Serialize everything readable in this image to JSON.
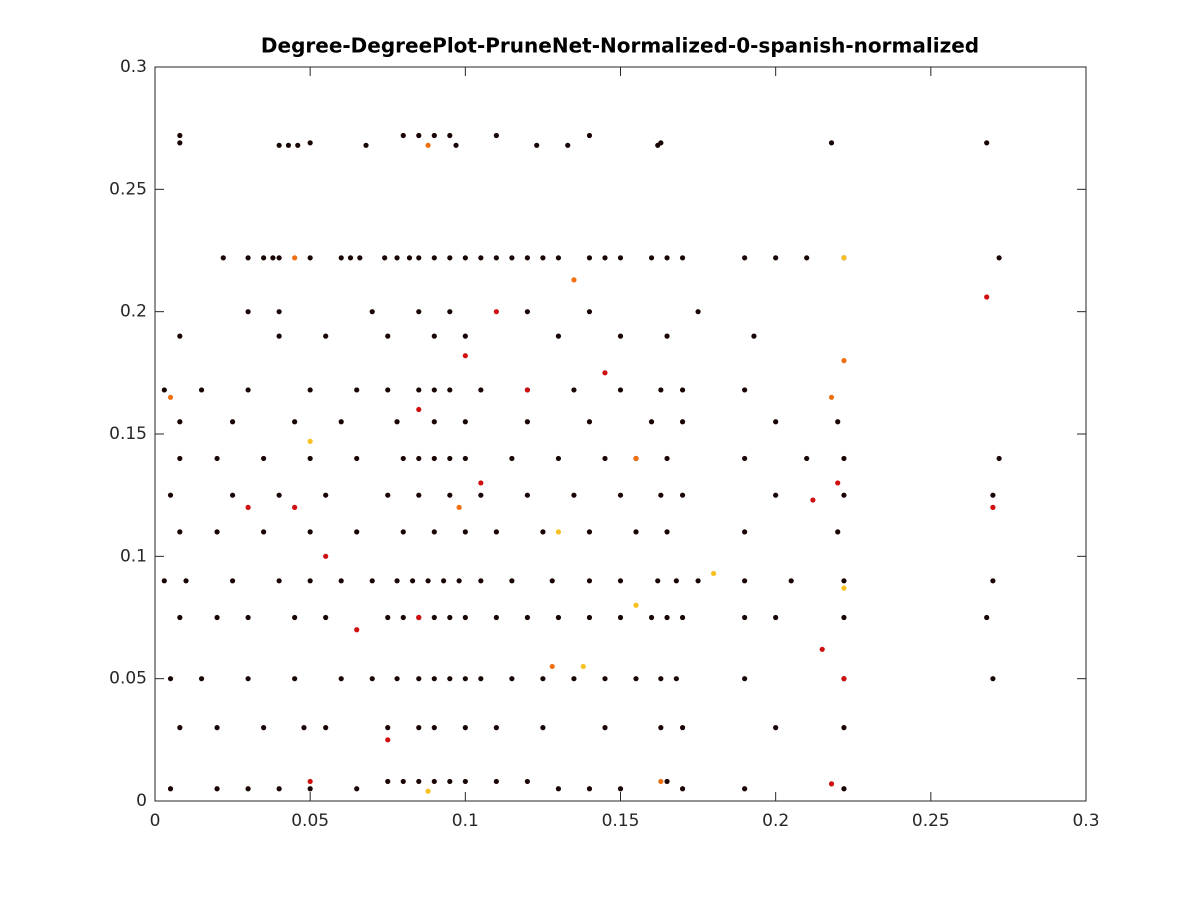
{
  "chart_data": {
    "type": "scatter",
    "title": "Degree-DegreePlot-PruneNet-Normalized-0-spanish-normalized",
    "xlim": [
      0,
      0.3
    ],
    "ylim": [
      0,
      0.3
    ],
    "xticks": [
      0,
      0.05,
      0.1,
      0.15,
      0.2,
      0.25,
      0.3
    ],
    "yticks": [
      0,
      0.05,
      0.1,
      0.15,
      0.2,
      0.25,
      0.3
    ],
    "series": [
      {
        "color": "#1a0505",
        "x": [
          0.005,
          0.02,
          0.03,
          0.04,
          0.05,
          0.065,
          0.075,
          0.08,
          0.085,
          0.09,
          0.095,
          0.1,
          0.11,
          0.12,
          0.13,
          0.14,
          0.15,
          0.165,
          0.17,
          0.19,
          0.222
        ],
        "values": [
          0.005,
          0.005,
          0.005,
          0.005,
          0.005,
          0.005,
          0.008,
          0.008,
          0.008,
          0.008,
          0.008,
          0.008,
          0.008,
          0.008,
          0.005,
          0.005,
          0.005,
          0.008,
          0.005,
          0.005,
          0.005
        ]
      },
      {
        "color": "#1a0505",
        "x": [
          0.008,
          0.02,
          0.035,
          0.048,
          0.055,
          0.075,
          0.085,
          0.09,
          0.1,
          0.11,
          0.125,
          0.145,
          0.163,
          0.17,
          0.2,
          0.222
        ],
        "values": [
          0.03,
          0.03,
          0.03,
          0.03,
          0.03,
          0.03,
          0.03,
          0.03,
          0.03,
          0.03,
          0.03,
          0.03,
          0.03,
          0.03,
          0.03,
          0.03
        ]
      },
      {
        "color": "#1a0505",
        "x": [
          0.005,
          0.015,
          0.03,
          0.045,
          0.06,
          0.07,
          0.078,
          0.085,
          0.09,
          0.095,
          0.1,
          0.105,
          0.115,
          0.125,
          0.135,
          0.145,
          0.155,
          0.163,
          0.168,
          0.19,
          0.222,
          0.27
        ],
        "values": [
          0.05,
          0.05,
          0.05,
          0.05,
          0.05,
          0.05,
          0.05,
          0.05,
          0.05,
          0.05,
          0.05,
          0.05,
          0.05,
          0.05,
          0.05,
          0.05,
          0.05,
          0.05,
          0.05,
          0.05,
          0.05,
          0.05
        ]
      },
      {
        "color": "#1a0505",
        "x": [
          0.008,
          0.02,
          0.03,
          0.045,
          0.055,
          0.075,
          0.08,
          0.085,
          0.09,
          0.095,
          0.1,
          0.11,
          0.12,
          0.13,
          0.14,
          0.15,
          0.16,
          0.165,
          0.17,
          0.19,
          0.2,
          0.222,
          0.268
        ],
        "values": [
          0.075,
          0.075,
          0.075,
          0.075,
          0.075,
          0.075,
          0.075,
          0.075,
          0.075,
          0.075,
          0.075,
          0.075,
          0.075,
          0.075,
          0.075,
          0.075,
          0.075,
          0.075,
          0.075,
          0.075,
          0.075,
          0.075,
          0.075
        ]
      },
      {
        "color": "#1a0505",
        "x": [
          0.003,
          0.01,
          0.025,
          0.04,
          0.05,
          0.06,
          0.07,
          0.078,
          0.083,
          0.088,
          0.093,
          0.098,
          0.105,
          0.115,
          0.128,
          0.14,
          0.15,
          0.162,
          0.168,
          0.175,
          0.19,
          0.205,
          0.222,
          0.27
        ],
        "values": [
          0.09,
          0.09,
          0.09,
          0.09,
          0.09,
          0.09,
          0.09,
          0.09,
          0.09,
          0.09,
          0.09,
          0.09,
          0.09,
          0.09,
          0.09,
          0.09,
          0.09,
          0.09,
          0.09,
          0.09,
          0.09,
          0.09,
          0.09,
          0.09
        ]
      },
      {
        "color": "#1a0505",
        "x": [
          0.008,
          0.02,
          0.035,
          0.05,
          0.065,
          0.08,
          0.09,
          0.1,
          0.11,
          0.125,
          0.14,
          0.155,
          0.165,
          0.19,
          0.22
        ],
        "values": [
          0.11,
          0.11,
          0.11,
          0.11,
          0.11,
          0.11,
          0.11,
          0.11,
          0.11,
          0.11,
          0.11,
          0.11,
          0.11,
          0.11,
          0.11
        ]
      },
      {
        "color": "#1a0505",
        "x": [
          0.005,
          0.025,
          0.04,
          0.055,
          0.075,
          0.085,
          0.095,
          0.105,
          0.12,
          0.135,
          0.15,
          0.163,
          0.17,
          0.2,
          0.222,
          0.27
        ],
        "values": [
          0.125,
          0.125,
          0.125,
          0.125,
          0.125,
          0.125,
          0.125,
          0.125,
          0.125,
          0.125,
          0.125,
          0.125,
          0.125,
          0.125,
          0.125,
          0.125
        ]
      },
      {
        "color": "#1a0505",
        "x": [
          0.008,
          0.02,
          0.035,
          0.05,
          0.065,
          0.08,
          0.085,
          0.09,
          0.095,
          0.1,
          0.115,
          0.13,
          0.145,
          0.155,
          0.165,
          0.19,
          0.21,
          0.222,
          0.272
        ],
        "values": [
          0.14,
          0.14,
          0.14,
          0.14,
          0.14,
          0.14,
          0.14,
          0.14,
          0.14,
          0.14,
          0.14,
          0.14,
          0.14,
          0.14,
          0.14,
          0.14,
          0.14,
          0.14,
          0.14
        ]
      },
      {
        "color": "#1a0505",
        "x": [
          0.008,
          0.025,
          0.045,
          0.06,
          0.078,
          0.09,
          0.1,
          0.12,
          0.14,
          0.16,
          0.17,
          0.2,
          0.22
        ],
        "values": [
          0.155,
          0.155,
          0.155,
          0.155,
          0.155,
          0.155,
          0.155,
          0.155,
          0.155,
          0.155,
          0.155,
          0.155,
          0.155
        ]
      },
      {
        "color": "#1a0505",
        "x": [
          0.003,
          0.015,
          0.03,
          0.05,
          0.065,
          0.075,
          0.085,
          0.09,
          0.095,
          0.105,
          0.12,
          0.135,
          0.15,
          0.163,
          0.17,
          0.19
        ],
        "values": [
          0.168,
          0.168,
          0.168,
          0.168,
          0.168,
          0.168,
          0.168,
          0.168,
          0.168,
          0.168,
          0.168,
          0.168,
          0.168,
          0.168,
          0.168,
          0.168
        ]
      },
      {
        "color": "#1a0505",
        "x": [
          0.008,
          0.04,
          0.055,
          0.075,
          0.09,
          0.1,
          0.13,
          0.15,
          0.165,
          0.193
        ],
        "values": [
          0.19,
          0.19,
          0.19,
          0.19,
          0.19,
          0.19,
          0.19,
          0.19,
          0.19,
          0.19
        ]
      },
      {
        "color": "#1a0505",
        "x": [
          0.03,
          0.04,
          0.07,
          0.085,
          0.095,
          0.12,
          0.14,
          0.175
        ],
        "values": [
          0.2,
          0.2,
          0.2,
          0.2,
          0.2,
          0.2,
          0.2,
          0.2
        ]
      },
      {
        "color": "#1a0505",
        "x": [
          0.022,
          0.03,
          0.035,
          0.038,
          0.04,
          0.05,
          0.06,
          0.063,
          0.066,
          0.074,
          0.078,
          0.082,
          0.085,
          0.09,
          0.095,
          0.1,
          0.105,
          0.11,
          0.115,
          0.12,
          0.125,
          0.13,
          0.14,
          0.145,
          0.15,
          0.16,
          0.165,
          0.17,
          0.19,
          0.2,
          0.21,
          0.222,
          0.272
        ],
        "values": [
          0.222,
          0.222,
          0.222,
          0.222,
          0.222,
          0.222,
          0.222,
          0.222,
          0.222,
          0.222,
          0.222,
          0.222,
          0.222,
          0.222,
          0.222,
          0.222,
          0.222,
          0.222,
          0.222,
          0.222,
          0.222,
          0.222,
          0.222,
          0.222,
          0.222,
          0.222,
          0.222,
          0.222,
          0.222,
          0.222,
          0.222,
          0.222,
          0.222
        ]
      },
      {
        "color": "#1a0505",
        "x": [
          0.008,
          0.008,
          0.04,
          0.043,
          0.046,
          0.05,
          0.068,
          0.08,
          0.085,
          0.09,
          0.095,
          0.097,
          0.11,
          0.123,
          0.133,
          0.14,
          0.162,
          0.163,
          0.218,
          0.268
        ],
        "values": [
          0.272,
          0.269,
          0.268,
          0.268,
          0.268,
          0.269,
          0.268,
          0.272,
          0.272,
          0.272,
          0.272,
          0.268,
          0.272,
          0.268,
          0.268,
          0.272,
          0.268,
          0.269,
          0.269,
          0.269
        ]
      },
      {
        "color": "#d01010",
        "x": [
          0.03,
          0.05,
          0.055,
          0.085,
          0.1,
          0.12,
          0.105,
          0.075,
          0.085,
          0.215,
          0.212,
          0.22,
          0.222,
          0.27,
          0.268,
          0.218,
          0.11,
          0.145,
          0.065,
          0.045
        ],
        "values": [
          0.12,
          0.008,
          0.1,
          0.16,
          0.182,
          0.168,
          0.13,
          0.025,
          0.075,
          0.062,
          0.123,
          0.13,
          0.05,
          0.12,
          0.206,
          0.007,
          0.2,
          0.175,
          0.07,
          0.12
        ]
      },
      {
        "color": "#f07010",
        "x": [
          0.005,
          0.045,
          0.088,
          0.135,
          0.155,
          0.218,
          0.222,
          0.128,
          0.098,
          0.163
        ],
        "values": [
          0.165,
          0.222,
          0.268,
          0.213,
          0.14,
          0.165,
          0.18,
          0.055,
          0.12,
          0.008
        ]
      },
      {
        "color": "#f8c020",
        "x": [
          0.088,
          0.138,
          0.222,
          0.222,
          0.18,
          0.05,
          0.155,
          0.13
        ],
        "values": [
          0.004,
          0.055,
          0.087,
          0.222,
          0.093,
          0.147,
          0.08,
          0.11
        ]
      }
    ]
  }
}
